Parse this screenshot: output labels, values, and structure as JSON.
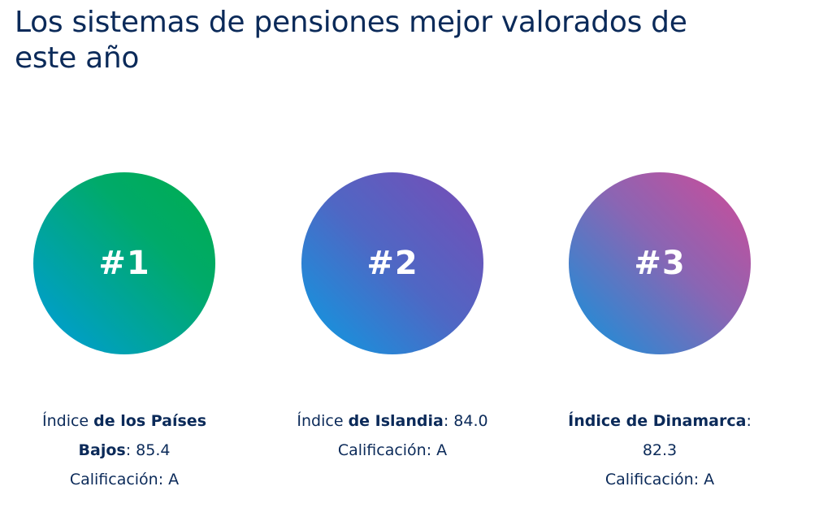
{
  "header": {
    "title": "Los sistemas de pensiones mejor valorados de este año"
  },
  "rankings": [
    {
      "rank": "#1",
      "line1_prefix": "Índice ",
      "line1_bold": "de los Países",
      "line2_bold": "Bajos",
      "line2_rest": ": 85.4",
      "line3": "Calificación: A",
      "gradient": [
        "#00ad4d",
        "#009cdd"
      ]
    },
    {
      "rank": "#2",
      "line1_prefix": "Índice ",
      "line1_bold": "de Islandia",
      "line1_rest": ": 84.0",
      "line2": "Calificación: A",
      "gradient": [
        "#7a4bb5",
        "#0a9ce2"
      ]
    },
    {
      "rank": "#3",
      "line1_bold": "Índice de Dinamarca",
      "line1_rest": ":",
      "line2": "82.3",
      "line3": "Calificación: A",
      "gradient": [
        "#d14a97",
        "#0f93dc"
      ]
    }
  ],
  "colors": {
    "text": "#0b2a59",
    "background": "#ffffff"
  }
}
